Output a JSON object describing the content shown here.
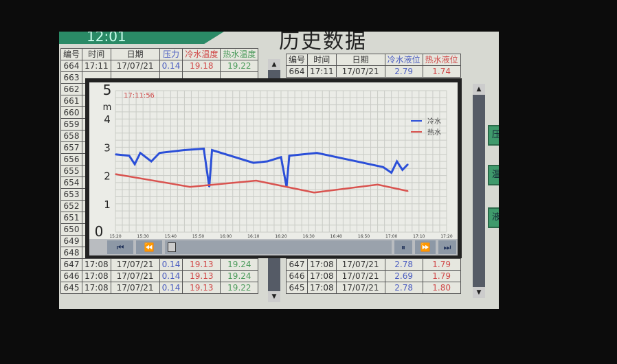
{
  "header": {
    "clock": "12:01",
    "title": "历史数据"
  },
  "left_table": {
    "headers": [
      "编号",
      "时间",
      "日期",
      "压力",
      "冷水温度",
      "热水温度"
    ],
    "rows": [
      [
        "664",
        "17:11",
        "17/07/21",
        "0.14",
        "19.18",
        "19.22"
      ],
      [
        "663"
      ],
      [
        "662"
      ],
      [
        "661"
      ],
      [
        "660"
      ],
      [
        "659"
      ],
      [
        "658"
      ],
      [
        "657"
      ],
      [
        "656"
      ],
      [
        "655"
      ],
      [
        "654"
      ],
      [
        "653"
      ],
      [
        "652"
      ],
      [
        "651"
      ],
      [
        "650"
      ],
      [
        "649"
      ],
      [
        "648"
      ],
      [
        "647",
        "17:08",
        "17/07/21",
        "0.14",
        "19.13",
        "19.24"
      ],
      [
        "646",
        "17:08",
        "17/07/21",
        "0.14",
        "19.13",
        "19.24"
      ],
      [
        "645",
        "17:08",
        "17/07/21",
        "0.14",
        "19.13",
        "19.22"
      ]
    ]
  },
  "right_table": {
    "headers": [
      "编号",
      "时间",
      "日期",
      "冷水液位",
      "热水液位"
    ],
    "rows": [
      [
        "664",
        "17:11",
        "17/07/21",
        "2.79",
        "1.74"
      ],
      [
        "647",
        "17:08",
        "17/07/21",
        "2.78",
        "1.79"
      ],
      [
        "646",
        "17:08",
        "17/07/21",
        "2.69",
        "1.79"
      ],
      [
        "645",
        "17:08",
        "17/07/21",
        "2.78",
        "1.80"
      ]
    ]
  },
  "side_buttons": [
    "压力",
    "温度",
    "液位"
  ],
  "trend": {
    "timestamp": "17:11:56",
    "controls": {
      "first": "⏮",
      "rewind": "⏪",
      "pause": "⏸",
      "forward": "⏩",
      "last": "⏭"
    }
  },
  "chart_data": {
    "type": "line",
    "ylabel": "m",
    "ylim": [
      0,
      5
    ],
    "yticks": [
      "0",
      "1",
      "2",
      "3",
      "4",
      "5"
    ],
    "xticks": [
      "15:20",
      "15:30",
      "15:40",
      "15:50",
      "16:00",
      "16:10",
      "16:20",
      "16:30",
      "16:40",
      "16:50",
      "17:00",
      "17:10",
      "17:20"
    ],
    "grid": true,
    "legend": "top-right",
    "series": [
      {
        "name": "冷水",
        "color": "#2b4fd8",
        "points": [
          [
            "15:20",
            2.75
          ],
          [
            "15:25",
            2.7
          ],
          [
            "15:27",
            2.4
          ],
          [
            "15:29",
            2.8
          ],
          [
            "15:33",
            2.5
          ],
          [
            "15:36",
            2.8
          ],
          [
            "15:45",
            2.9
          ],
          [
            "15:52",
            2.95
          ],
          [
            "15:54",
            1.6
          ],
          [
            "15:55",
            2.9
          ],
          [
            "16:10",
            2.45
          ],
          [
            "16:15",
            2.5
          ],
          [
            "16:20",
            2.65
          ],
          [
            "16:22",
            1.6
          ],
          [
            "16:23",
            2.7
          ],
          [
            "16:33",
            2.8
          ],
          [
            "16:57",
            2.3
          ],
          [
            "17:00",
            2.1
          ],
          [
            "17:02",
            2.5
          ],
          [
            "17:04",
            2.2
          ],
          [
            "17:06",
            2.4
          ]
        ]
      },
      {
        "name": "热水",
        "color": "#d9534f",
        "points": [
          [
            "15:20",
            2.05
          ],
          [
            "15:47",
            1.6
          ],
          [
            "16:11",
            1.82
          ],
          [
            "16:32",
            1.4
          ],
          [
            "16:55",
            1.68
          ],
          [
            "17:06",
            1.45
          ]
        ]
      }
    ]
  },
  "colors": {
    "banner": "#2a8a66",
    "cold": "#2b4fd8",
    "hot": "#d9534f"
  }
}
